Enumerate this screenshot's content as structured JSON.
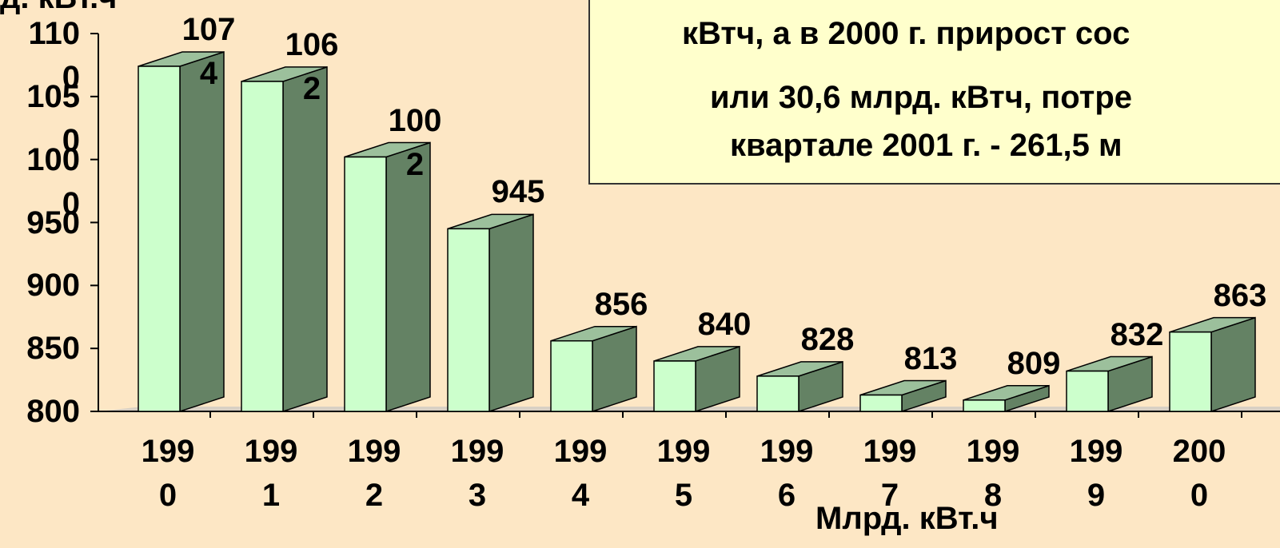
{
  "chart_data": {
    "type": "bar3d",
    "y_label": "д. кВт.ч",
    "x_label": "Млрд. кВт.ч",
    "annotation": [
      "кВтч, а в 2000 г. прирост сос",
      "или 30,6 млрд. кВтч, потре",
      "квартале 2001 г.  -  261,5 м"
    ],
    "categories": [
      "1990",
      "1991",
      "1992",
      "1993",
      "1994",
      "1995",
      "1996",
      "1997",
      "1998",
      "1999",
      "2000"
    ],
    "values": [
      1074,
      1062,
      1002,
      945,
      856,
      840,
      828,
      813,
      809,
      832,
      863
    ],
    "color": "#ccffcc",
    "ylim": [
      800,
      1100
    ],
    "yticks": [
      800,
      850,
      900,
      950,
      1000,
      1050,
      1100
    ]
  }
}
